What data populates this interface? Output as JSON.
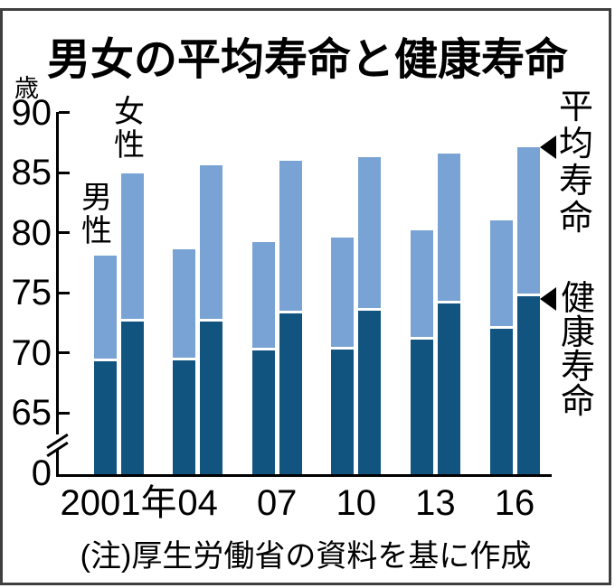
{
  "title": "男女の平均寿命と健康寿命",
  "y_axis": {
    "unit": "歳",
    "tick_labels": [
      "90",
      "85",
      "80",
      "75",
      "70",
      "65",
      "0"
    ]
  },
  "x_axis": {
    "labels": [
      "2001年",
      "04",
      "07",
      "10",
      "13",
      "16"
    ]
  },
  "bar_group_labels": {
    "female": "女性",
    "male": "男性"
  },
  "annotations": {
    "average": "平均寿命",
    "healthy": "健康寿命"
  },
  "note": "(注)厚生労働省の資料を基に作成",
  "colors": {
    "bar_light": "#78a3d4",
    "bar_dark": "#125480",
    "axis": "#000000",
    "frame": "#3f3f3f",
    "divider_white": "#ffffff"
  },
  "chart_data": {
    "type": "bar",
    "stacked": true,
    "title": "男女の平均寿命と健康寿命",
    "unit": "歳",
    "categories": [
      "2001年",
      "04",
      "07",
      "10",
      "13",
      "16"
    ],
    "series": [
      {
        "name": "男性 健康寿命",
        "values": [
          69.4,
          69.5,
          70.3,
          70.4,
          71.2,
          72.1
        ]
      },
      {
        "name": "男性 平均寿命",
        "values": [
          78.1,
          78.6,
          79.2,
          79.6,
          80.2,
          81.0
        ]
      },
      {
        "name": "女性 健康寿命",
        "values": [
          72.7,
          72.7,
          73.4,
          73.6,
          74.2,
          74.8
        ]
      },
      {
        "name": "女性 平均寿命",
        "values": [
          84.9,
          85.6,
          86.0,
          86.3,
          86.6,
          87.1
        ]
      }
    ],
    "yticks": [
      0,
      65,
      70,
      75,
      80,
      85,
      90
    ],
    "ylim_display": [
      65,
      90
    ],
    "axis_break_between": [
      0,
      65
    ],
    "grid": false,
    "legend_position": "right-annotations",
    "note": "(注)厚生労働省の資料を基に作成"
  }
}
